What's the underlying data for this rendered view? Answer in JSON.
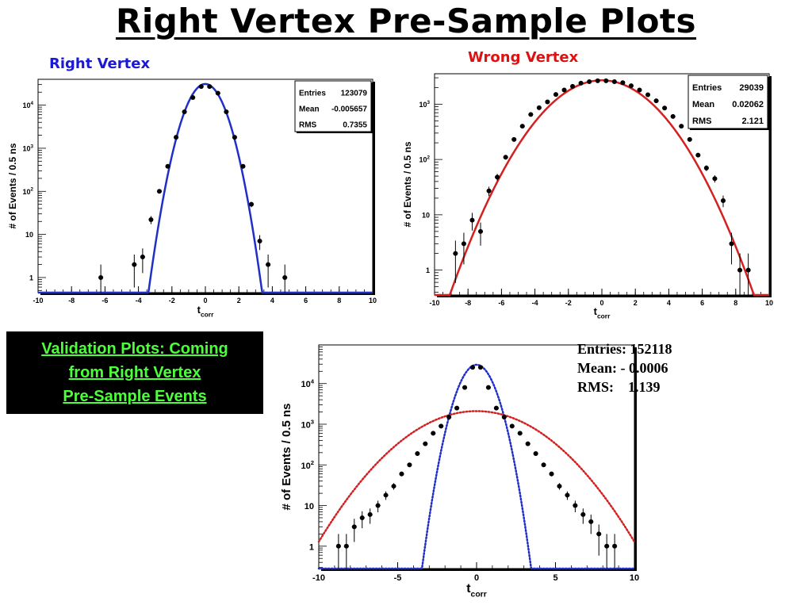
{
  "page": {
    "title": "Right Vertex Pre-Sample Plots",
    "subtitle_right": "Right Vertex",
    "subtitle_wrong": "Wrong Vertex",
    "callout": "Validation Plots: Coming\nfrom Right Vertex \nPre-Sample Events",
    "stats_text": {
      "entries": "Entries: 152118",
      "mean": "Mean: - 0.0006",
      "rms": "RMS:    1.139"
    }
  },
  "colors": {
    "right_fit": "#1f2fc8",
    "wrong_fit": "#d42020",
    "callout_bg": "#000000",
    "callout_text": "#4dff3a"
  },
  "chart_data": [
    {
      "type": "scatter",
      "id": "right",
      "title": "",
      "xlabel": "t",
      "xlabel_sub": "corr",
      "ylabel": "# of Events / 0.5 ns",
      "xlim": [
        -10,
        10
      ],
      "ylog": true,
      "ylim_log": [
        -0.35,
        4.6
      ],
      "xticks": [
        -10,
        -8,
        -6,
        -4,
        -2,
        0,
        2,
        4,
        6,
        8,
        10
      ],
      "ytick_labels": [
        {
          "v": 1,
          "b": "1",
          "e": ""
        },
        {
          "v": 10,
          "b": "10",
          "e": ""
        },
        {
          "v": 100,
          "b": "10",
          "e": "2"
        },
        {
          "v": 1000,
          "b": "10",
          "e": "3"
        },
        {
          "v": 10000,
          "b": "10",
          "e": "4"
        }
      ],
      "stats": [
        {
          "label": "Entries",
          "value": "123079"
        },
        {
          "label": "Mean",
          "value": "-0.005657"
        },
        {
          "label": "RMS",
          "value": "0.7355"
        }
      ],
      "points": [
        [
          -6.25,
          1
        ],
        [
          -4.25,
          2
        ],
        [
          -3.75,
          3
        ],
        [
          -3.25,
          22
        ],
        [
          -2.75,
          100
        ],
        [
          -2.25,
          380
        ],
        [
          -1.75,
          1800
        ],
        [
          -1.25,
          7000
        ],
        [
          -0.75,
          15000
        ],
        [
          -0.25,
          27000
        ],
        [
          0.25,
          27000
        ],
        [
          0.75,
          19000
        ],
        [
          1.25,
          7000
        ],
        [
          1.75,
          1800
        ],
        [
          2.25,
          380
        ],
        [
          2.75,
          50
        ],
        [
          3.25,
          7
        ],
        [
          3.75,
          2
        ],
        [
          4.75,
          1
        ]
      ],
      "fit": {
        "model": "gaussian",
        "amplitude": 31000,
        "mean": -0.005,
        "sigma": 0.72
      },
      "fit_color": "#1f2fc8",
      "fit_style": "solid"
    },
    {
      "type": "scatter",
      "id": "wrong",
      "title": "",
      "xlabel": "t",
      "xlabel_sub": "corr",
      "ylabel": "# of Events / 0.5 ns",
      "xlim": [
        -10,
        10
      ],
      "ylog": true,
      "ylim_log": [
        -0.45,
        3.55
      ],
      "xticks": [
        -10,
        -8,
        -6,
        -4,
        -2,
        0,
        2,
        4,
        6,
        8,
        10
      ],
      "ytick_labels": [
        {
          "v": 1,
          "b": "1",
          "e": ""
        },
        {
          "v": 10,
          "b": "10",
          "e": ""
        },
        {
          "v": 100,
          "b": "10",
          "e": "2"
        },
        {
          "v": 1000,
          "b": "10",
          "e": "3"
        }
      ],
      "stats": [
        {
          "label": "Entries",
          "value": "29039"
        },
        {
          "label": "Mean",
          "value": "0.02062"
        },
        {
          "label": "RMS",
          "value": "2.121"
        }
      ],
      "points": [
        [
          -8.75,
          2
        ],
        [
          -8.25,
          3
        ],
        [
          -7.75,
          8
        ],
        [
          -7.25,
          5
        ],
        [
          -6.75,
          27
        ],
        [
          -6.25,
          48
        ],
        [
          -5.75,
          110
        ],
        [
          -5.25,
          230
        ],
        [
          -4.75,
          400
        ],
        [
          -4.25,
          650
        ],
        [
          -3.75,
          860
        ],
        [
          -3.25,
          1100
        ],
        [
          -2.75,
          1500
        ],
        [
          -2.25,
          1800
        ],
        [
          -1.75,
          2100
        ],
        [
          -1.25,
          2400
        ],
        [
          -0.75,
          2550
        ],
        [
          -0.25,
          2650
        ],
        [
          0.25,
          2650
        ],
        [
          0.75,
          2550
        ],
        [
          1.25,
          2450
        ],
        [
          1.75,
          2150
        ],
        [
          2.25,
          1800
        ],
        [
          2.75,
          1480
        ],
        [
          3.25,
          1150
        ],
        [
          3.75,
          850
        ],
        [
          4.25,
          600
        ],
        [
          4.75,
          400
        ],
        [
          5.25,
          230
        ],
        [
          5.75,
          120
        ],
        [
          6.25,
          70
        ],
        [
          6.75,
          45
        ],
        [
          7.25,
          18
        ],
        [
          7.75,
          3
        ],
        [
          8.25,
          1
        ],
        [
          8.75,
          1
        ]
      ],
      "fit": {
        "model": "gaussian",
        "amplitude": 2700,
        "mean": 0.0,
        "sigma": 2.15
      },
      "fit_color": "#d42020",
      "fit_style": "solid"
    },
    {
      "type": "scatter",
      "id": "validation",
      "title": "",
      "xlabel": "t",
      "xlabel_sub": "corr",
      "ylabel": "# of Events / 0.5 ns",
      "xlim": [
        -10,
        10
      ],
      "ylog": true,
      "ylim_log": [
        -0.55,
        4.95
      ],
      "xticks": [
        -10,
        -5,
        0,
        5,
        10
      ],
      "ytick_labels": [
        {
          "v": 1,
          "b": "1",
          "e": ""
        },
        {
          "v": 10,
          "b": "10",
          "e": ""
        },
        {
          "v": 100,
          "b": "10",
          "e": "2"
        },
        {
          "v": 1000,
          "b": "10",
          "e": "3"
        },
        {
          "v": 10000,
          "b": "10",
          "e": "4"
        }
      ],
      "stats": [],
      "points": [
        [
          -8.75,
          1
        ],
        [
          -8.25,
          1
        ],
        [
          -7.75,
          3
        ],
        [
          -7.25,
          5
        ],
        [
          -6.75,
          6
        ],
        [
          -6.25,
          10
        ],
        [
          -5.75,
          18
        ],
        [
          -5.25,
          30
        ],
        [
          -4.75,
          60
        ],
        [
          -4.25,
          100
        ],
        [
          -3.75,
          190
        ],
        [
          -3.25,
          330
        ],
        [
          -2.75,
          600
        ],
        [
          -2.25,
          900
        ],
        [
          -1.75,
          1500
        ],
        [
          -1.25,
          2500
        ],
        [
          -0.75,
          8000
        ],
        [
          -0.25,
          25000
        ],
        [
          0.25,
          25000
        ],
        [
          0.75,
          8000
        ],
        [
          1.25,
          2500
        ],
        [
          1.75,
          1500
        ],
        [
          2.25,
          900
        ],
        [
          2.75,
          600
        ],
        [
          3.25,
          330
        ],
        [
          3.75,
          190
        ],
        [
          4.25,
          100
        ],
        [
          4.75,
          60
        ],
        [
          5.25,
          30
        ],
        [
          5.75,
          18
        ],
        [
          6.25,
          10
        ],
        [
          6.75,
          6
        ],
        [
          7.25,
          4
        ],
        [
          7.75,
          2
        ],
        [
          8.25,
          1
        ],
        [
          8.75,
          1
        ]
      ],
      "fits": [
        {
          "model": "gaussian",
          "amplitude": 29000,
          "mean": 0.0,
          "sigma": 0.72,
          "color": "#1f2fc8",
          "style": "dotted"
        },
        {
          "model": "gaussian",
          "amplitude": 2100,
          "mean": 0.0,
          "sigma": 2.6,
          "color": "#d42020",
          "style": "dotted"
        }
      ]
    }
  ]
}
